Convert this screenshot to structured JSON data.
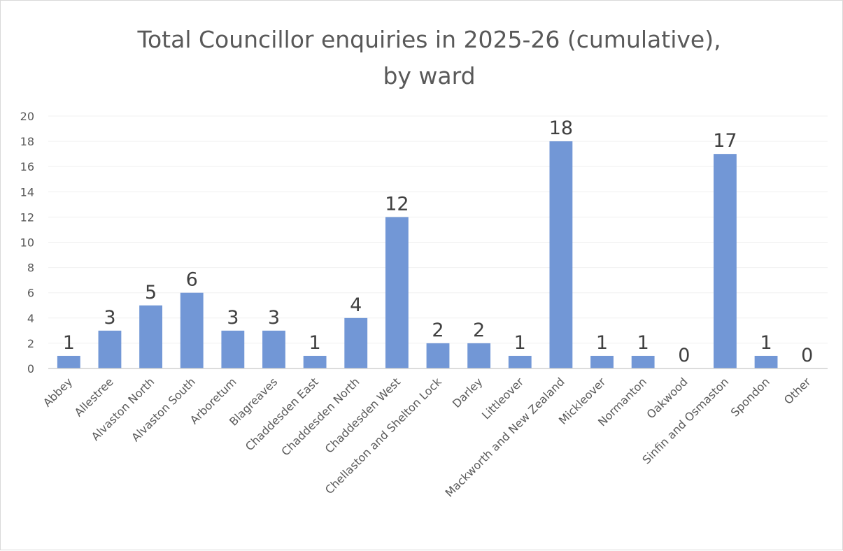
{
  "chart_data": {
    "type": "bar",
    "title_lines": [
      "Total Councillor enquiries in 2025-26 (cumulative),",
      "by ward"
    ],
    "categories": [
      "Abbey",
      "Allestree",
      "Alvaston North",
      "Alvaston South",
      "Arboretum",
      "Blagreaves",
      "Chaddesden East",
      "Chaddesden North",
      "Chaddesden West",
      "Chellaston and Shelton Lock",
      "Darley",
      "Littleover",
      "Mackworth and New Zealand",
      "Mickleover",
      "Normanton",
      "Oakwood",
      "Sinfin and Osmaston",
      "Spondon",
      "Other"
    ],
    "values": [
      1,
      3,
      5,
      6,
      3,
      3,
      1,
      4,
      12,
      2,
      2,
      1,
      18,
      1,
      1,
      0,
      17,
      1,
      0
    ],
    "data_labels": [
      "1",
      "3",
      "5",
      "6",
      "3",
      "3",
      "1",
      "4",
      "12",
      "2",
      "2",
      "1",
      "18",
      "1",
      "1",
      "0",
      "17",
      "1",
      "0"
    ],
    "y_ticks": [
      "0",
      "2",
      "4",
      "6",
      "8",
      "10",
      "12",
      "14",
      "16",
      "18",
      "20"
    ],
    "ylim": [
      0,
      20
    ],
    "xlabel": "",
    "ylabel": "",
    "grid": true,
    "legend": "none",
    "colors": {
      "bar": "#7297d6",
      "grid": "#f0f0f0",
      "axis": "#d0d0d0",
      "text": "#595959",
      "data_label": "#404040"
    }
  }
}
